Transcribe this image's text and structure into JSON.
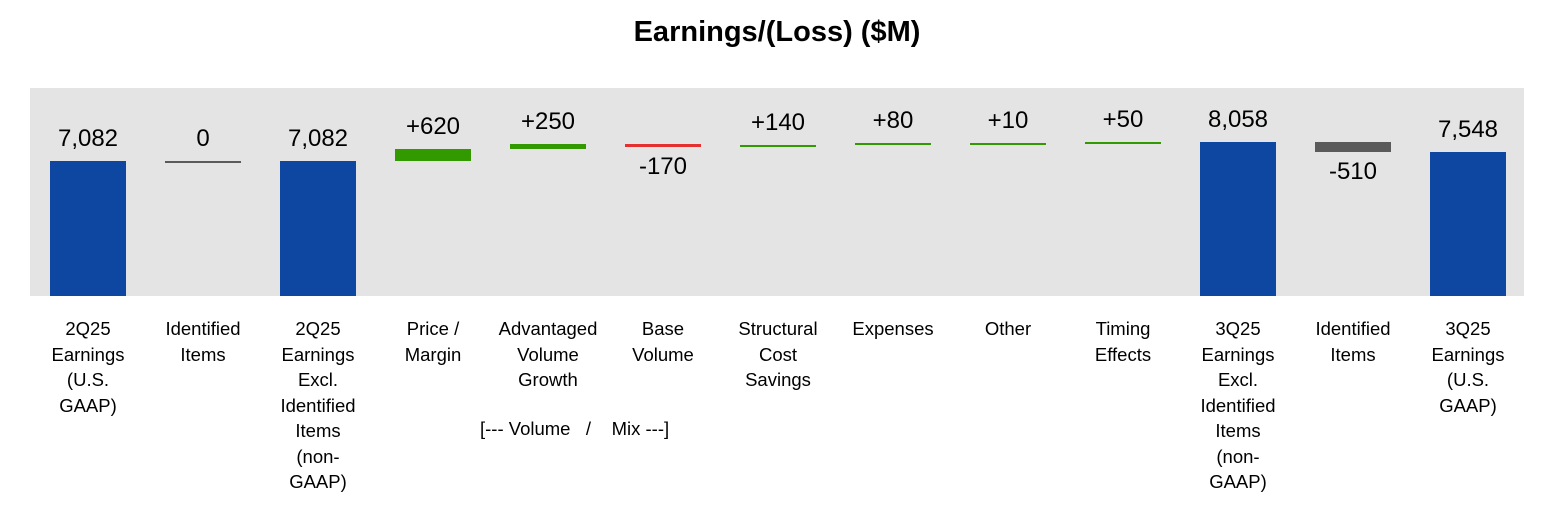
{
  "chart_data": {
    "type": "waterfall",
    "title": "Earnings/(Loss) ($M)",
    "ylim": [
      0,
      10900
    ],
    "grid": false,
    "legend": "none",
    "categories": [
      "2Q25\nEarnings\n(U.S.\nGAAP)",
      "Identified\nItems",
      "2Q25\nEarnings\nExcl.\nIdentified\nItems\n(non-\nGAAP)",
      "Price /\nMargin",
      "Advantaged\nVolume\nGrowth",
      "Base\nVolume",
      "Structural\nCost\nSavings",
      "Expenses",
      "Other",
      "Timing\nEffects",
      "3Q25\nEarnings\nExcl.\nIdentified\nItems\n(non-\nGAAP)",
      "Identified\nItems",
      "3Q25\nEarnings\n(U.S.\nGAAP)"
    ],
    "values": [
      7082,
      0,
      7082,
      620,
      250,
      -170,
      140,
      80,
      10,
      50,
      8058,
      -510,
      7548
    ],
    "kinds": [
      "total",
      "identified",
      "total",
      "delta",
      "delta",
      "delta",
      "delta",
      "delta",
      "delta",
      "delta",
      "total",
      "identified",
      "total"
    ],
    "labels": [
      "7,082",
      "0",
      "7,082",
      "+620",
      "+250",
      "-170",
      "+140",
      "+80",
      "+10",
      "+50",
      "8,058",
      "-510",
      "7,548"
    ],
    "group_annotation": "[--- Volume   /    Mix ---]",
    "colors": {
      "total": "#0d47a1",
      "increase": "#339900",
      "decrease": "#e53030",
      "identified": "#5a5a5a",
      "background": "#e4e4e4"
    }
  }
}
